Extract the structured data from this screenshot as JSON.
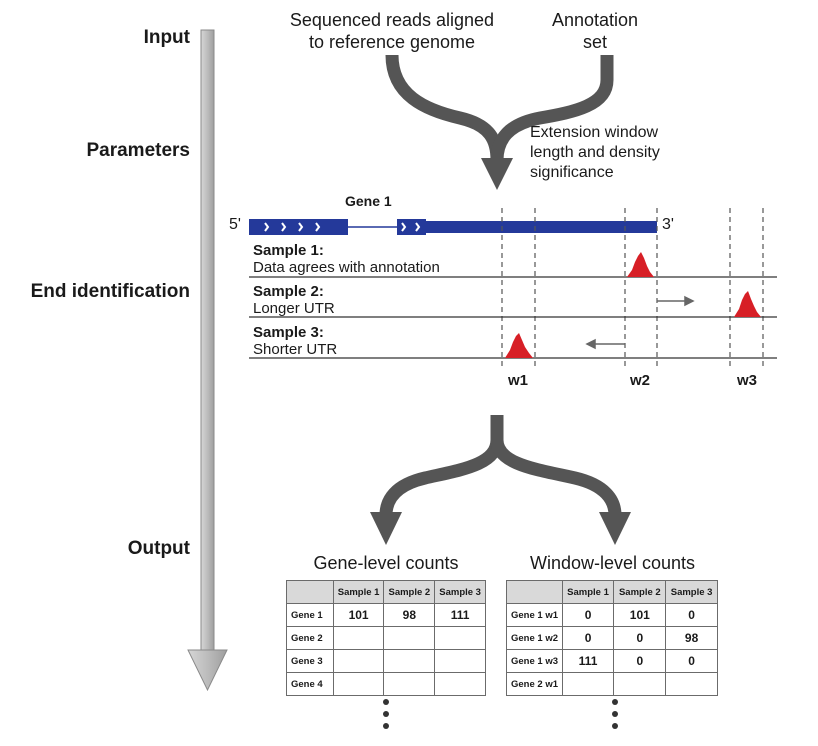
{
  "stages": {
    "input": "Input",
    "parameters": "Parameters",
    "end_identification": "End identification",
    "output": "Output"
  },
  "inputs": {
    "reads_line1": "Sequenced reads aligned",
    "reads_line2": "to reference genome",
    "annotation_line1": "Annotation",
    "annotation_line2": "set"
  },
  "parameters": {
    "line1": "Extension window",
    "line2": "length and density",
    "line3": "significance"
  },
  "gene": {
    "name": "Gene 1",
    "five_prime": "5'",
    "three_prime": "3'"
  },
  "samples": [
    {
      "title": "Sample 1:",
      "desc": "Data agrees with annotation"
    },
    {
      "title": "Sample 2:",
      "desc": "Longer UTR"
    },
    {
      "title": "Sample 3:",
      "desc": "Shorter UTR"
    }
  ],
  "windows": [
    "w1",
    "w2",
    "w3"
  ],
  "gene_table": {
    "title": "Gene-level counts",
    "columns": [
      "Sample 1",
      "Sample 2",
      "Sample 3"
    ],
    "rows": [
      {
        "label": "Gene 1",
        "values": [
          "101",
          "98",
          "111"
        ]
      },
      {
        "label": "Gene 2",
        "values": [
          "",
          "",
          ""
        ]
      },
      {
        "label": "Gene 3",
        "values": [
          "",
          "",
          ""
        ]
      },
      {
        "label": "Gene 4",
        "values": [
          "",
          "",
          ""
        ]
      }
    ]
  },
  "window_table": {
    "title": "Window-level counts",
    "columns": [
      "Sample 1",
      "Sample 2",
      "Sample 3"
    ],
    "rows": [
      {
        "label": "Gene 1 w1",
        "values": [
          "0",
          "101",
          "0"
        ]
      },
      {
        "label": "Gene 1 w2",
        "values": [
          "0",
          "0",
          "98"
        ]
      },
      {
        "label": "Gene 1 w3",
        "values": [
          "111",
          "0",
          "0"
        ]
      },
      {
        "label": "Gene 2 w1",
        "values": [
          "",
          "",
          ""
        ]
      }
    ]
  },
  "colors": {
    "gene_blue": "#24399a",
    "peak_red": "#d71f26",
    "arrow_gray": "#555555",
    "pipeline_gray": "#bdbdbd",
    "header_gray": "#d9d9d9"
  }
}
